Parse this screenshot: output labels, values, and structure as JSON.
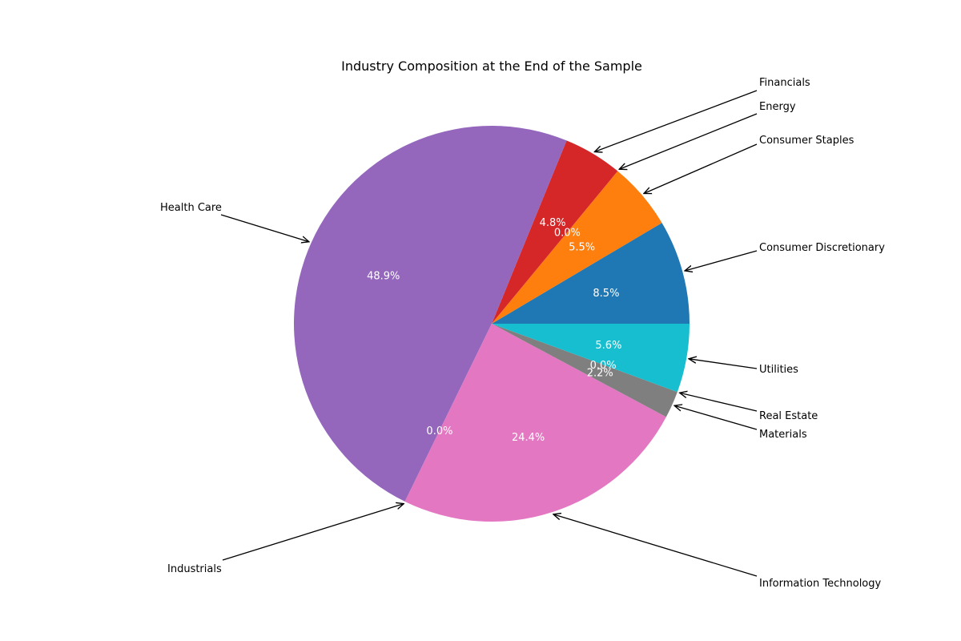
{
  "chart_data": {
    "type": "pie",
    "title": "Industry Composition at the End of the Sample",
    "slices": [
      {
        "label": "Consumer Discretionary",
        "value": 8.5,
        "pct_label": "8.5%",
        "color": "#1f77b4"
      },
      {
        "label": "Consumer Staples",
        "value": 5.5,
        "pct_label": "5.5%",
        "color": "#ff7f0e"
      },
      {
        "label": "Energy",
        "value": 0.0,
        "pct_label": "0.0%",
        "color": "#2ca02c"
      },
      {
        "label": "Financials",
        "value": 4.8,
        "pct_label": "4.8%",
        "color": "#d62728"
      },
      {
        "label": "Health Care",
        "value": 48.9,
        "pct_label": "48.9%",
        "color": "#9467bd"
      },
      {
        "label": "Industrials",
        "value": 0.0,
        "pct_label": "0.0%",
        "color": "#8c564b"
      },
      {
        "label": "Information Technology",
        "value": 24.4,
        "pct_label": "24.4%",
        "color": "#e377c2"
      },
      {
        "label": "Materials",
        "value": 2.2,
        "pct_label": "2.2%",
        "color": "#7f7f7f"
      },
      {
        "label": "Real Estate",
        "value": 0.0,
        "pct_label": "0.0%",
        "color": "#bcbd22"
      },
      {
        "label": "Utilities",
        "value": 5.6,
        "pct_label": "5.6%",
        "color": "#17becf"
      }
    ]
  }
}
